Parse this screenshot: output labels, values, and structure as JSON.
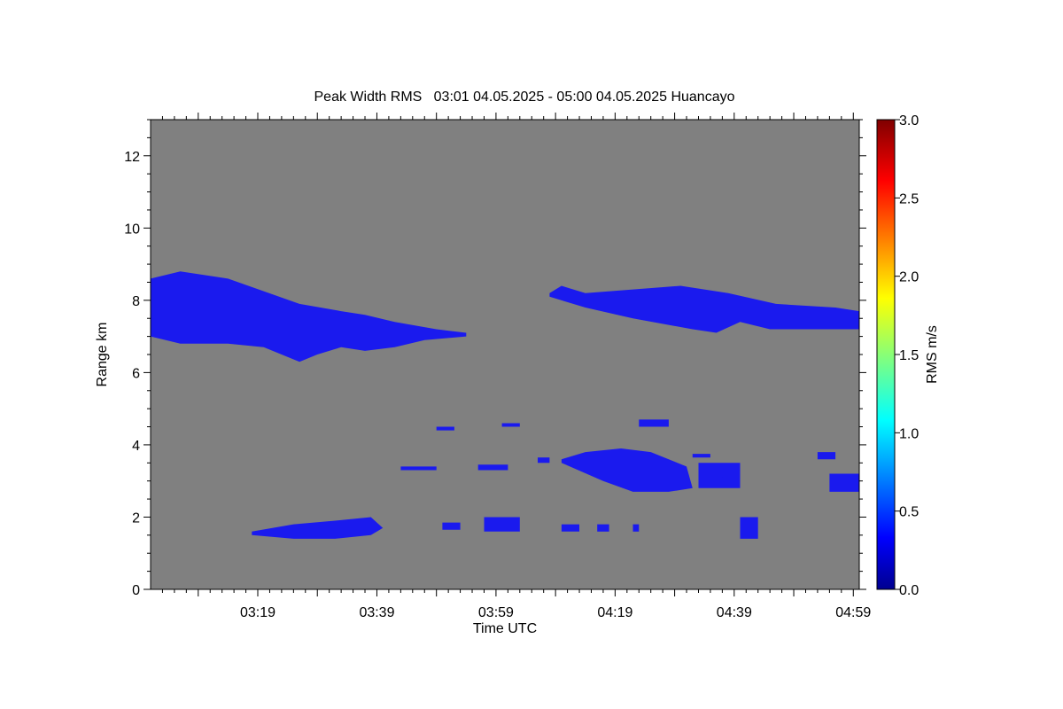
{
  "chart_data": {
    "type": "heatmap",
    "title": "Peak Width RMS   03:01 04.05.2025 - 05:00 04.05.2025 Huancayo",
    "xlabel": "Time UTC",
    "ylabel": "Range km",
    "x_tick_labels": [
      "03:19",
      "03:39",
      "03:59",
      "04:19",
      "04:39",
      "04:59"
    ],
    "x_tick_minutes": [
      199,
      219,
      239,
      259,
      279,
      299
    ],
    "xlim_minutes": [
      181,
      300
    ],
    "ylim": [
      0,
      13
    ],
    "y_ticks": [
      0,
      2,
      4,
      6,
      8,
      10,
      12
    ],
    "background_color": "#808080",
    "colorbar": {
      "label": "RMS m/s",
      "range": [
        0.0,
        3.0
      ],
      "ticks": [
        "0.0",
        "0.5",
        "1.0",
        "1.5",
        "2.0",
        "2.5",
        "3.0"
      ],
      "colormap": "jet"
    },
    "regions": [
      {
        "value": 0.3,
        "color": "#1a1aee",
        "x_minutes": [
          181,
          181,
          186,
          194,
          206,
          213,
          217,
          222,
          229,
          234,
          234,
          227,
          222,
          217,
          213,
          209,
          206,
          200,
          194,
          186,
          181
        ],
        "range_km": [
          7.0,
          8.6,
          8.8,
          8.6,
          7.9,
          7.7,
          7.6,
          7.4,
          7.2,
          7.1,
          7.0,
          6.9,
          6.7,
          6.6,
          6.7,
          6.5,
          6.3,
          6.7,
          6.8,
          6.8,
          7.0
        ]
      },
      {
        "value": 0.3,
        "color": "#1a1aee",
        "x_minutes": [
          248,
          250,
          254,
          262,
          270,
          278,
          286,
          296,
          300,
          300,
          292,
          285,
          280,
          276,
          272,
          262,
          254,
          248
        ],
        "range_km": [
          8.2,
          8.4,
          8.2,
          8.3,
          8.4,
          8.2,
          7.9,
          7.8,
          7.7,
          7.2,
          7.2,
          7.2,
          7.4,
          7.1,
          7.2,
          7.5,
          7.8,
          8.1
        ]
      },
      {
        "value": 0.3,
        "color": "#1a1aee",
        "x_minutes": [
          250,
          254,
          260,
          265,
          268,
          271,
          272,
          268,
          262,
          257,
          250
        ],
        "range_km": [
          3.6,
          3.8,
          3.9,
          3.8,
          3.6,
          3.4,
          2.8,
          2.7,
          2.7,
          3.0,
          3.5
        ]
      },
      {
        "value": 0.3,
        "color": "#1a1aee",
        "x_minutes": [
          198,
          205,
          212,
          218,
          220,
          218,
          212,
          205,
          198
        ],
        "range_km": [
          1.6,
          1.8,
          1.9,
          2.0,
          1.7,
          1.5,
          1.4,
          1.4,
          1.5
        ]
      },
      {
        "value": 0.3,
        "color": "#1a1aee",
        "x_minutes": [
          263,
          268,
          268,
          263
        ],
        "range_km": [
          4.7,
          4.7,
          4.5,
          4.5
        ]
      },
      {
        "value": 0.3,
        "color": "#1a1aee",
        "x_minutes": [
          273,
          280,
          280,
          273
        ],
        "range_km": [
          3.5,
          3.5,
          2.8,
          2.8
        ]
      },
      {
        "value": 0.3,
        "color": "#1a1aee",
        "x_minutes": [
          276,
          280,
          279,
          277
        ],
        "range_km": [
          3.4,
          3.3,
          3.1,
          3.1
        ]
      },
      {
        "value": 0.3,
        "color": "#1a1aee",
        "x_minutes": [
          293,
          296,
          296,
          293
        ],
        "range_km": [
          3.8,
          3.8,
          3.6,
          3.6
        ]
      },
      {
        "value": 0.3,
        "color": "#1a1aee",
        "x_minutes": [
          295,
          300,
          300,
          295
        ],
        "range_km": [
          3.2,
          3.2,
          2.7,
          2.7
        ]
      },
      {
        "value": 0.3,
        "color": "#1a1aee",
        "x_minutes": [
          280,
          283,
          283,
          280
        ],
        "range_km": [
          2.0,
          2.0,
          1.4,
          1.4
        ]
      },
      {
        "value": 0.3,
        "color": "#1a1aee",
        "x_minutes": [
          223,
          229,
          229,
          223
        ],
        "range_km": [
          3.4,
          3.4,
          3.3,
          3.3
        ]
      },
      {
        "value": 0.3,
        "color": "#1a1aee",
        "x_minutes": [
          236,
          241,
          241,
          236
        ],
        "range_km": [
          3.45,
          3.45,
          3.3,
          3.3
        ]
      },
      {
        "value": 0.3,
        "color": "#1a1aee",
        "x_minutes": [
          230,
          233,
          233,
          230
        ],
        "range_km": [
          1.85,
          1.85,
          1.65,
          1.65
        ]
      },
      {
        "value": 0.3,
        "color": "#1a1aee",
        "x_minutes": [
          237,
          243,
          243,
          237
        ],
        "range_km": [
          2.0,
          2.0,
          1.6,
          1.6
        ]
      },
      {
        "value": 0.3,
        "color": "#1a1aee",
        "x_minutes": [
          250,
          253,
          253,
          250
        ],
        "range_km": [
          1.8,
          1.8,
          1.6,
          1.6
        ]
      },
      {
        "value": 0.3,
        "color": "#1a1aee",
        "x_minutes": [
          229,
          232,
          232,
          229
        ],
        "range_km": [
          4.5,
          4.5,
          4.4,
          4.4
        ]
      },
      {
        "value": 0.3,
        "color": "#1a1aee",
        "x_minutes": [
          240,
          243,
          243,
          240
        ],
        "range_km": [
          4.6,
          4.6,
          4.5,
          4.5
        ]
      },
      {
        "value": 0.3,
        "color": "#1a1aee",
        "x_minutes": [
          246,
          248,
          248,
          246
        ],
        "range_km": [
          3.65,
          3.65,
          3.5,
          3.5
        ]
      },
      {
        "value": 0.3,
        "color": "#1a1aee",
        "x_minutes": [
          272,
          275,
          275,
          272
        ],
        "range_km": [
          3.75,
          3.75,
          3.65,
          3.65
        ]
      },
      {
        "value": 0.3,
        "color": "#1a1aee",
        "x_minutes": [
          256,
          258,
          258,
          256
        ],
        "range_km": [
          1.8,
          1.8,
          1.6,
          1.6
        ]
      },
      {
        "value": 0.3,
        "color": "#1a1aee",
        "x_minutes": [
          262,
          263,
          263,
          262
        ],
        "range_km": [
          1.8,
          1.8,
          1.6,
          1.6
        ]
      }
    ]
  }
}
